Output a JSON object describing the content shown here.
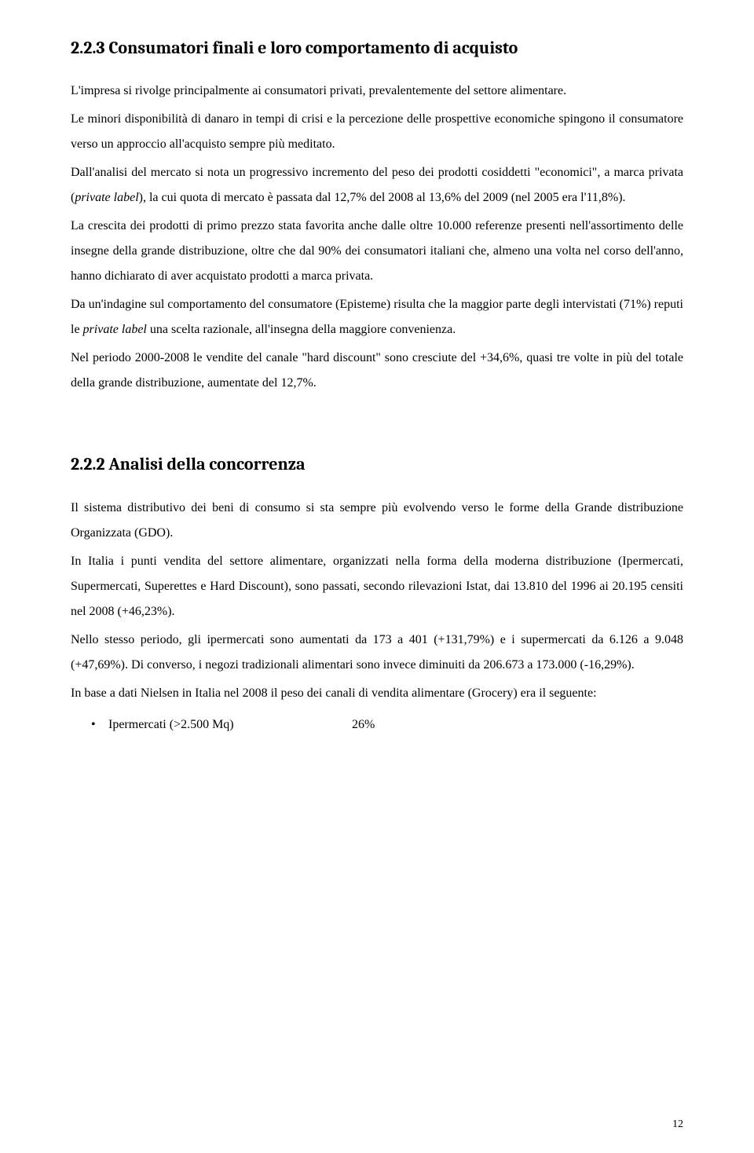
{
  "sec1": {
    "heading": "2.2.3  Consumatori finali e loro comportamento di acquisto",
    "p1": "L'impresa si rivolge principalmente ai consumatori privati, prevalentemente del settore alimentare.",
    "p2_a": "Le minori disponibilità di danaro in tempi di crisi e la percezione delle prospettive economiche spingono il consumatore verso un approccio all'acquisto sempre più meditato.",
    "p3_a": "Dall'analisi del mercato si nota un progressivo incremento del peso dei prodotti cosiddetti \"economici\", a marca privata (",
    "p3_i": "private label",
    "p3_b": "), la cui quota di mercato è passata dal 12,7% del 2008 al 13,6% del 2009 (nel 2005 era l'11,8%).",
    "p4": "La crescita dei prodotti di primo prezzo stata favorita anche dalle oltre 10.000 referenze presenti nell'assortimento delle insegne della grande distribuzione, oltre che dal 90% dei consumatori italiani che, almeno una volta nel corso dell'anno, hanno dichiarato di aver acquistato prodotti a marca privata.",
    "p5_a": "Da un'indagine sul comportamento del consumatore (Episteme) risulta che  la maggior parte degli intervistati (71%) reputi le ",
    "p5_i": "private label",
    "p5_b": " una scelta razionale, all'insegna della maggiore convenienza.",
    "p6": "Nel periodo 2000-2008 le vendite del canale \"hard discount\" sono cresciute del +34,6%, quasi tre volte in più del totale della grande distribuzione, aumentate del 12,7%."
  },
  "sec2": {
    "heading": "2.2.2  Analisi della concorrenza",
    "p1": "Il sistema distributivo dei beni di consumo si sta sempre più evolvendo verso le forme della Grande distribuzione Organizzata (GDO).",
    "p2": "In Italia i punti vendita del settore alimentare, organizzati nella forma della moderna distribuzione (Ipermercati, Supermercati, Superettes e Hard Discount), sono passati, secondo rilevazioni Istat, dai 13.810  del 1996 ai 20.195 censiti nel 2008 (+46,23%).",
    "p3": "Nello stesso periodo, gli ipermercati sono aumentati da 173 a 401 (+131,79%) e i supermercati da 6.126 a 9.048 (+47,69%). Di converso, i negozi tradizionali alimentari sono invece diminuiti da 206.673 a 173.000 (-16,29%).",
    "p4": "In base a dati Nielsen in Italia nel 2008  il peso dei canali di vendita alimentare (Grocery) era il seguente:",
    "bullet1_label": "Ipermercati (>2.500 Mq)",
    "bullet1_value": "26%"
  },
  "page_number": "12"
}
